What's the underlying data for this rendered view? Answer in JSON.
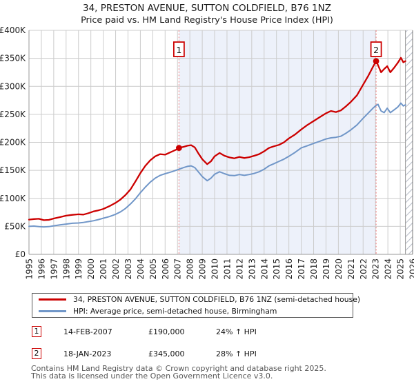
{
  "header": {
    "title": "34, PRESTON AVENUE, SUTTON COLDFIELD, B76 1NZ",
    "subtitle": "Price paid vs. HM Land Registry's House Price Index (HPI)"
  },
  "chart_data": {
    "type": "line",
    "title": "34, PRESTON AVENUE, SUTTON COLDFIELD, B76 1NZ — Price paid vs. HPI",
    "grid": true,
    "grid_color": "#cccccc",
    "dashed_color": "#f08a8a",
    "x_axis": {
      "min": 1995,
      "max": 2026,
      "ticks": [
        "1995",
        "1996",
        "1997",
        "1998",
        "1999",
        "2000",
        "2001",
        "2002",
        "2003",
        "2004",
        "2005",
        "2006",
        "2007",
        "2008",
        "2009",
        "2010",
        "2011",
        "2012",
        "2013",
        "2014",
        "2015",
        "2016",
        "2017",
        "2018",
        "2019",
        "2020",
        "2021",
        "2022",
        "2023",
        "2024",
        "2025",
        "2026"
      ]
    },
    "y_axis": {
      "max": 400,
      "ticks": [
        {
          "value": 0,
          "label": "£0"
        },
        {
          "value": 50,
          "label": "£50K"
        },
        {
          "value": 100,
          "label": "£100K"
        },
        {
          "value": 150,
          "label": "£150K"
        },
        {
          "value": 200,
          "label": "£200K"
        },
        {
          "value": 250,
          "label": "£250K"
        },
        {
          "value": 300,
          "label": "£300K"
        },
        {
          "value": 350,
          "label": "£350K"
        },
        {
          "value": 400,
          "label": "£400K"
        }
      ]
    },
    "shade_region": {
      "from": 2007.12,
      "to": 2023.05,
      "color": "#edf1fa"
    },
    "hatch_region": {
      "from": 2025.42,
      "to": 2026
    },
    "markers": [
      {
        "label": "1",
        "year": 2007.12,
        "value": 190
      },
      {
        "label": "2",
        "year": 2023.05,
        "value": 345
      }
    ],
    "series": [
      {
        "id": "price-paid",
        "name": "34, PRESTON AVENUE, SUTTON COLDFIELD, B76 1NZ (semi-detached house)",
        "color": "#cc0000",
        "width": 2.3,
        "points": [
          [
            1995.0,
            62
          ],
          [
            1995.4,
            63
          ],
          [
            1995.8,
            63.5
          ],
          [
            1996.2,
            61
          ],
          [
            1996.6,
            61.5
          ],
          [
            1997.0,
            64
          ],
          [
            1997.5,
            66.5
          ],
          [
            1998.0,
            69
          ],
          [
            1998.5,
            70.5
          ],
          [
            1999.0,
            71.5
          ],
          [
            1999.4,
            71
          ],
          [
            1999.8,
            73.5
          ],
          [
            2000.2,
            76.5
          ],
          [
            2000.6,
            78.5
          ],
          [
            2001.0,
            81
          ],
          [
            2001.5,
            86
          ],
          [
            2002.0,
            92
          ],
          [
            2002.4,
            98
          ],
          [
            2002.8,
            106
          ],
          [
            2003.2,
            116
          ],
          [
            2003.6,
            130
          ],
          [
            2004.0,
            145
          ],
          [
            2004.4,
            158
          ],
          [
            2004.8,
            168
          ],
          [
            2005.2,
            175
          ],
          [
            2005.6,
            179
          ],
          [
            2006.0,
            178
          ],
          [
            2006.3,
            181
          ],
          [
            2006.6,
            184
          ],
          [
            2007.0,
            188
          ],
          [
            2007.12,
            190
          ],
          [
            2007.5,
            192
          ],
          [
            2007.8,
            194
          ],
          [
            2008.1,
            195
          ],
          [
            2008.4,
            191
          ],
          [
            2008.7,
            180
          ],
          [
            2009.0,
            170
          ],
          [
            2009.4,
            161
          ],
          [
            2009.7,
            166
          ],
          [
            2010.0,
            175
          ],
          [
            2010.4,
            181
          ],
          [
            2010.8,
            176
          ],
          [
            2011.2,
            173
          ],
          [
            2011.6,
            171.5
          ],
          [
            2012.0,
            174
          ],
          [
            2012.4,
            172
          ],
          [
            2012.8,
            173.5
          ],
          [
            2013.2,
            176
          ],
          [
            2013.6,
            179
          ],
          [
            2014.0,
            184
          ],
          [
            2014.4,
            190
          ],
          [
            2014.8,
            193
          ],
          [
            2015.2,
            195.5
          ],
          [
            2015.6,
            200
          ],
          [
            2016.0,
            207
          ],
          [
            2016.5,
            214
          ],
          [
            2017.0,
            223
          ],
          [
            2017.5,
            231
          ],
          [
            2018.0,
            238
          ],
          [
            2018.5,
            245
          ],
          [
            2019.0,
            252
          ],
          [
            2019.4,
            256
          ],
          [
            2019.8,
            254
          ],
          [
            2020.2,
            257
          ],
          [
            2020.6,
            264
          ],
          [
            2021.0,
            272
          ],
          [
            2021.5,
            284
          ],
          [
            2022.0,
            303
          ],
          [
            2022.4,
            318
          ],
          [
            2022.8,
            335
          ],
          [
            2023.05,
            345
          ],
          [
            2023.2,
            338
          ],
          [
            2023.45,
            325
          ],
          [
            2023.7,
            331
          ],
          [
            2023.95,
            336
          ],
          [
            2024.2,
            325
          ],
          [
            2024.5,
            333
          ],
          [
            2024.8,
            342
          ],
          [
            2025.05,
            351
          ],
          [
            2025.25,
            343
          ],
          [
            2025.42,
            345
          ]
        ]
      },
      {
        "id": "hpi",
        "name": "HPI: Average price, semi-detached house, Birmingham",
        "color": "#7096c8",
        "width": 2,
        "points": [
          [
            1995.0,
            50
          ],
          [
            1995.4,
            50.5
          ],
          [
            1995.8,
            49.5
          ],
          [
            1996.2,
            49
          ],
          [
            1996.6,
            49.5
          ],
          [
            1997.0,
            51
          ],
          [
            1997.5,
            52.5
          ],
          [
            1998.0,
            54
          ],
          [
            1998.5,
            55.5
          ],
          [
            1999.0,
            56
          ],
          [
            1999.4,
            57
          ],
          [
            1999.8,
            58.5
          ],
          [
            2000.2,
            60
          ],
          [
            2000.6,
            62
          ],
          [
            2001.0,
            64.5
          ],
          [
            2001.5,
            67.5
          ],
          [
            2002.0,
            71.5
          ],
          [
            2002.4,
            76
          ],
          [
            2002.8,
            82
          ],
          [
            2003.2,
            90
          ],
          [
            2003.6,
            99
          ],
          [
            2004.0,
            110
          ],
          [
            2004.4,
            120
          ],
          [
            2004.8,
            129
          ],
          [
            2005.2,
            136
          ],
          [
            2005.6,
            141
          ],
          [
            2006.0,
            144
          ],
          [
            2006.3,
            146
          ],
          [
            2006.6,
            148
          ],
          [
            2007.0,
            151
          ],
          [
            2007.12,
            152
          ],
          [
            2007.5,
            155
          ],
          [
            2007.8,
            157
          ],
          [
            2008.1,
            158
          ],
          [
            2008.4,
            155
          ],
          [
            2008.7,
            147
          ],
          [
            2009.0,
            139
          ],
          [
            2009.4,
            131.5
          ],
          [
            2009.7,
            136
          ],
          [
            2010.0,
            143
          ],
          [
            2010.4,
            147.5
          ],
          [
            2010.8,
            144
          ],
          [
            2011.2,
            141
          ],
          [
            2011.6,
            140.5
          ],
          [
            2012.0,
            142.5
          ],
          [
            2012.4,
            141
          ],
          [
            2012.8,
            142.5
          ],
          [
            2013.2,
            144.5
          ],
          [
            2013.6,
            147.5
          ],
          [
            2014.0,
            152
          ],
          [
            2014.4,
            158
          ],
          [
            2014.8,
            162
          ],
          [
            2015.2,
            166
          ],
          [
            2015.6,
            170
          ],
          [
            2016.0,
            175
          ],
          [
            2016.5,
            182
          ],
          [
            2017.0,
            190
          ],
          [
            2017.5,
            194
          ],
          [
            2018.0,
            198
          ],
          [
            2018.5,
            202
          ],
          [
            2019.0,
            206
          ],
          [
            2019.4,
            208
          ],
          [
            2019.8,
            209
          ],
          [
            2020.2,
            211
          ],
          [
            2020.6,
            216
          ],
          [
            2021.0,
            222
          ],
          [
            2021.5,
            231
          ],
          [
            2022.0,
            243
          ],
          [
            2022.4,
            252
          ],
          [
            2022.8,
            261
          ],
          [
            2023.05,
            266
          ],
          [
            2023.2,
            268
          ],
          [
            2023.45,
            256
          ],
          [
            2023.7,
            253
          ],
          [
            2023.95,
            261
          ],
          [
            2024.2,
            253
          ],
          [
            2024.5,
            258
          ],
          [
            2024.8,
            263
          ],
          [
            2025.05,
            270
          ],
          [
            2025.25,
            265
          ],
          [
            2025.42,
            267
          ]
        ]
      }
    ]
  },
  "legend": {
    "items": [
      {
        "label": "34, PRESTON AVENUE, SUTTON COLDFIELD, B76 1NZ (semi-detached house)",
        "color": "#cc0000"
      },
      {
        "label": "HPI: Average price, semi-detached house, Birmingham",
        "color": "#7096c8"
      }
    ]
  },
  "annotations": [
    {
      "num": "1",
      "date": "14-FEB-2007",
      "price": "£190,000",
      "hpi": "24% ↑ HPI"
    },
    {
      "num": "2",
      "date": "18-JAN-2023",
      "price": "£345,000",
      "hpi": "28% ↑ HPI"
    }
  ],
  "footer": {
    "line1": "Contains HM Land Registry data © Crown copyright and database right 2025.",
    "line2": "This data is licensed under the Open Government Licence v3.0."
  }
}
